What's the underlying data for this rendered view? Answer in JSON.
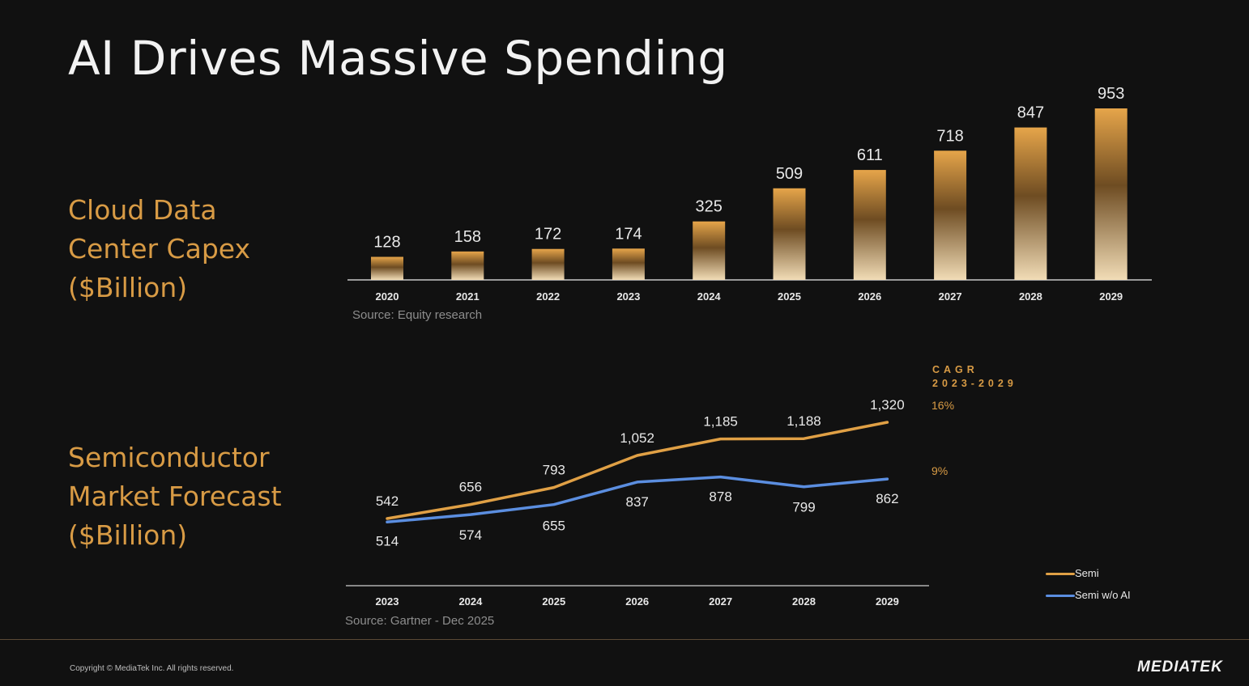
{
  "title": "AI Drives Massive Spending",
  "colors": {
    "accent": "#d89b45",
    "semi": "#e0a045",
    "semi_wo_ai": "#5b8ee0",
    "background": "#111111"
  },
  "section1": {
    "label_lines": [
      "Cloud Data",
      "Center Capex",
      "($Billion)"
    ],
    "source": "Source:  Equity research"
  },
  "section2": {
    "label_lines": [
      "Semiconductor",
      "Market Forecast",
      "($Billion)"
    ],
    "source": "Source: Gartner - Dec 2025"
  },
  "cagr": {
    "title_lines": [
      "CAGR",
      "2023-2029"
    ],
    "semi": "16%",
    "semi_wo_ai": "9%"
  },
  "legend": {
    "semi": "Semi",
    "semi_wo_ai": "Semi w/o AI"
  },
  "footer": {
    "copyright": "Copyright © MediaTek Inc. All rights reserved.",
    "logo": "MEDIATEK"
  },
  "chart_data": [
    {
      "type": "bar",
      "title": "Cloud Data Center Capex ($Billion)",
      "categories": [
        "2020",
        "2021",
        "2022",
        "2023",
        "2024",
        "2025",
        "2026",
        "2027",
        "2028",
        "2029"
      ],
      "values": [
        128,
        158,
        172,
        174,
        325,
        509,
        611,
        718,
        847,
        953
      ],
      "data_labels": [
        "128",
        "158",
        "172",
        "174",
        "325",
        "509",
        "611",
        "718",
        "847",
        "953"
      ],
      "ylim": [
        0,
        953
      ],
      "xlabel": "",
      "ylabel": ""
    },
    {
      "type": "line",
      "title": "Semiconductor Market Forecast ($Billion)",
      "categories": [
        "2023",
        "2024",
        "2025",
        "2026",
        "2027",
        "2028",
        "2029"
      ],
      "series": [
        {
          "name": "Semi",
          "values": [
            542,
            656,
            793,
            1052,
            1185,
            1188,
            1320
          ],
          "labels": [
            "542",
            "656",
            "793",
            "1,052",
            "1,185",
            "1,188",
            "1,320"
          ]
        },
        {
          "name": "Semi w/o AI",
          "values": [
            514,
            574,
            655,
            837,
            878,
            799,
            862
          ],
          "labels": [
            "514",
            "574",
            "655",
            "837",
            "878",
            "799",
            "862"
          ]
        }
      ],
      "xlabel": "",
      "ylabel": ""
    }
  ]
}
